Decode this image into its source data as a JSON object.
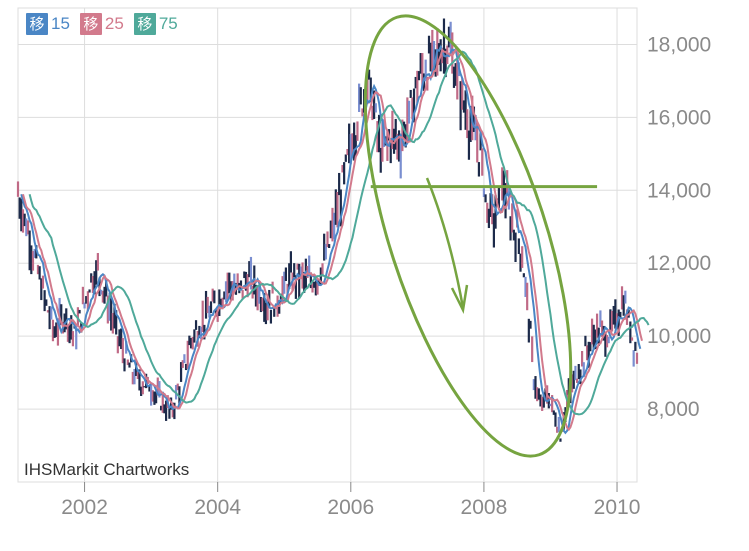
{
  "legend": [
    {
      "badge": "移",
      "period": "15",
      "color": "#4a86c5"
    },
    {
      "badge": "移",
      "period": "25",
      "color": "#d27a8c"
    },
    {
      "badge": "移",
      "period": "75",
      "color": "#4fa99a"
    }
  ],
  "credit": "IHSMarkit Chartworks",
  "colors": {
    "price": "#1c2a4a",
    "annotation": "#76a440",
    "axis_text": "#8a8a8a",
    "grid": "#dddddd"
  },
  "annotation": {
    "support_level": 14100,
    "support_from": 2006.3,
    "support_to": 2009.7
  },
  "chart_data": {
    "type": "line",
    "title": "",
    "xlabel": "",
    "ylabel": "",
    "xlim": [
      2001.0,
      2010.3
    ],
    "ylim": [
      6000,
      19000
    ],
    "x_ticks": [
      "2002",
      "2004",
      "2006",
      "2008",
      "2010"
    ],
    "y_ticks": [
      "8,000",
      "10,000",
      "12,000",
      "14,000",
      "16,000",
      "18,000"
    ],
    "grid": true,
    "legend_position": "top-left",
    "series": [
      {
        "name": "",
        "points": [
          [
            2001.0,
            13900
          ],
          [
            2001.2,
            12500
          ],
          [
            2001.4,
            11000
          ],
          [
            2001.55,
            10100
          ],
          [
            2001.7,
            10600
          ],
          [
            2001.85,
            10000
          ],
          [
            2002.0,
            10900
          ],
          [
            2002.1,
            11600
          ],
          [
            2002.2,
            11800
          ],
          [
            2002.35,
            10900
          ],
          [
            2002.5,
            10000
          ],
          [
            2002.65,
            9200
          ],
          [
            2002.8,
            8800
          ],
          [
            2003.0,
            8600
          ],
          [
            2003.15,
            8200
          ],
          [
            2003.3,
            7900
          ],
          [
            2003.45,
            8800
          ],
          [
            2003.6,
            9900
          ],
          [
            2003.8,
            10500
          ],
          [
            2004.0,
            10900
          ],
          [
            2004.15,
            11500
          ],
          [
            2004.3,
            11200
          ],
          [
            2004.45,
            11600
          ],
          [
            2004.6,
            11200
          ],
          [
            2004.75,
            10900
          ],
          [
            2004.9,
            11000
          ],
          [
            2005.05,
            11500
          ],
          [
            2005.2,
            11700
          ],
          [
            2005.35,
            11500
          ],
          [
            2005.5,
            11600
          ],
          [
            2005.65,
            12300
          ],
          [
            2005.8,
            13500
          ],
          [
            2005.95,
            14800
          ],
          [
            2006.1,
            16000
          ],
          [
            2006.25,
            17000
          ],
          [
            2006.35,
            16200
          ],
          [
            2006.45,
            15000
          ],
          [
            2006.6,
            15500
          ],
          [
            2006.75,
            15300
          ],
          [
            2006.9,
            16200
          ],
          [
            2007.0,
            17000
          ],
          [
            2007.15,
            17400
          ],
          [
            2007.3,
            17700
          ],
          [
            2007.45,
            18100
          ],
          [
            2007.6,
            17000
          ],
          [
            2007.75,
            16000
          ],
          [
            2007.85,
            15500
          ],
          [
            2007.95,
            15000
          ],
          [
            2008.05,
            13500
          ],
          [
            2008.15,
            13200
          ],
          [
            2008.3,
            14100
          ],
          [
            2008.4,
            13200
          ],
          [
            2008.55,
            12500
          ],
          [
            2008.65,
            11000
          ],
          [
            2008.75,
            8900
          ],
          [
            2008.85,
            8000
          ],
          [
            2008.95,
            8400
          ],
          [
            2009.05,
            7900
          ],
          [
            2009.15,
            7300
          ],
          [
            2009.25,
            8200
          ],
          [
            2009.4,
            9000
          ],
          [
            2009.55,
            9600
          ],
          [
            2009.7,
            10200
          ],
          [
            2009.85,
            10000
          ],
          [
            2010.0,
            10500
          ],
          [
            2010.1,
            11000
          ],
          [
            2010.2,
            10200
          ],
          [
            2010.3,
            9500
          ]
        ]
      }
    ]
  }
}
